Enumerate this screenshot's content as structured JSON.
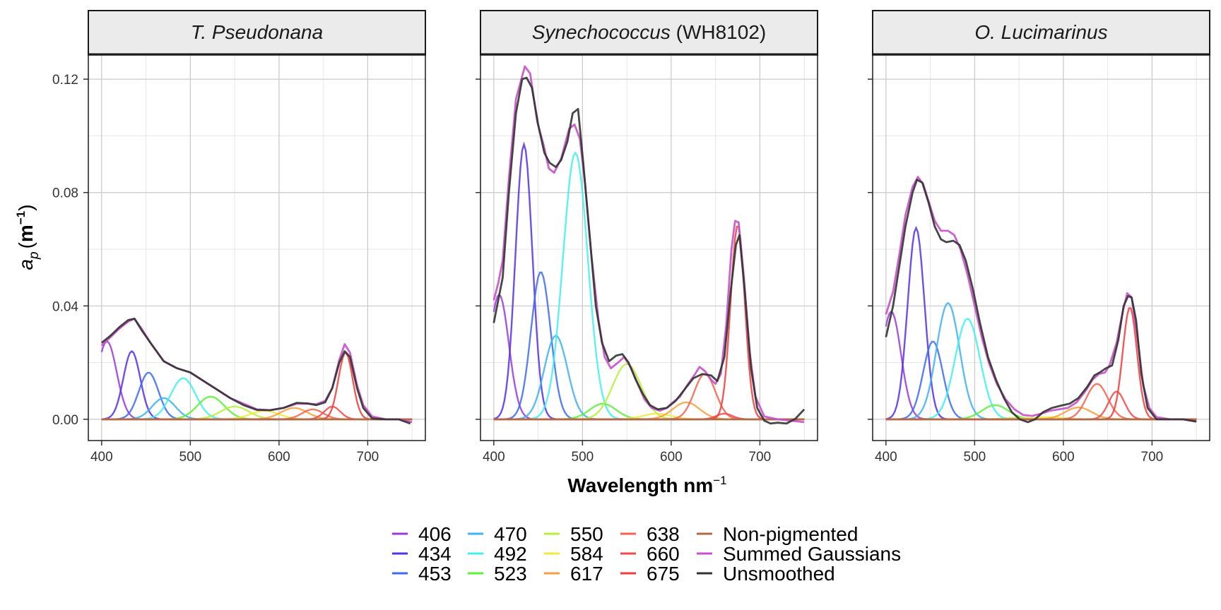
{
  "chart_data": {
    "type": "line",
    "xlabel": "Wavelength nm",
    "xlabel_sup": "−1",
    "ylabel": "a",
    "ylabel_sub": "p",
    "ylabel_unit": "m",
    "ylabel_unit_sup": "−1",
    "xlim": [
      385,
      765
    ],
    "ylim": [
      -0.0075,
      0.1285
    ],
    "x_ticks": [
      400,
      500,
      600,
      700
    ],
    "y_ticks": [
      0.0,
      0.04,
      0.08,
      0.12
    ],
    "y_tick_labels": [
      "0.00",
      "0.04",
      "0.08",
      "0.12"
    ],
    "grid": true,
    "legend_position": "bottom",
    "legend": [
      {
        "label": "406",
        "color": "#9b3ad6"
      },
      {
        "label": "434",
        "color": "#5330e8"
      },
      {
        "label": "453",
        "color": "#3d6af0"
      },
      {
        "label": "470",
        "color": "#3fb2f2"
      },
      {
        "label": "492",
        "color": "#3ff0ef"
      },
      {
        "label": "523",
        "color": "#5ef03a"
      },
      {
        "label": "550",
        "color": "#b6f03c"
      },
      {
        "label": "584",
        "color": "#f0ea3c"
      },
      {
        "label": "617",
        "color": "#f5a040"
      },
      {
        "label": "638",
        "color": "#f26450"
      },
      {
        "label": "660",
        "color": "#f04a4a"
      },
      {
        "label": "675",
        "color": "#f23c3c"
      },
      {
        "label": "Non-pigmented",
        "color": "#b06a48"
      },
      {
        "label": "Summed Gaussians",
        "color": "#c850c8"
      },
      {
        "label": "Unsmoothed",
        "color": "#333333"
      }
    ],
    "panels": [
      {
        "title": "T. Pseudonana",
        "title_suffix": "",
        "gaussian_peaks": [
          0.0275,
          0.024,
          0.0165,
          0.0075,
          0.0145,
          0.008,
          0.0045,
          0.003,
          0.004,
          0.0035,
          0.0045,
          0.0235
        ],
        "summed": [
          [
            400,
            0.026
          ],
          [
            410,
            0.029
          ],
          [
            420,
            0.032
          ],
          [
            430,
            0.0345
          ],
          [
            437,
            0.0355
          ],
          [
            445,
            0.032
          ],
          [
            455,
            0.027
          ],
          [
            470,
            0.0205
          ],
          [
            485,
            0.018
          ],
          [
            500,
            0.0165
          ],
          [
            515,
            0.0135
          ],
          [
            530,
            0.0105
          ],
          [
            545,
            0.0075
          ],
          [
            560,
            0.0055
          ],
          [
            575,
            0.0035
          ],
          [
            590,
            0.0032
          ],
          [
            605,
            0.004
          ],
          [
            620,
            0.0055
          ],
          [
            632,
            0.0055
          ],
          [
            642,
            0.0053
          ],
          [
            652,
            0.0065
          ],
          [
            660,
            0.011
          ],
          [
            668,
            0.021
          ],
          [
            674,
            0.0265
          ],
          [
            680,
            0.0235
          ],
          [
            688,
            0.012
          ],
          [
            695,
            0.005
          ],
          [
            705,
            0.001
          ],
          [
            720,
            0.0
          ],
          [
            735,
            0.0
          ],
          [
            750,
            -0.001
          ]
        ],
        "unsmoothed": [
          [
            400,
            0.027
          ],
          [
            410,
            0.0295
          ],
          [
            420,
            0.0325
          ],
          [
            430,
            0.035
          ],
          [
            437,
            0.0355
          ],
          [
            445,
            0.0315
          ],
          [
            455,
            0.027
          ],
          [
            470,
            0.0205
          ],
          [
            485,
            0.018
          ],
          [
            500,
            0.0165
          ],
          [
            515,
            0.0135
          ],
          [
            530,
            0.0105
          ],
          [
            545,
            0.0075
          ],
          [
            560,
            0.005
          ],
          [
            575,
            0.0033
          ],
          [
            590,
            0.0032
          ],
          [
            605,
            0.004
          ],
          [
            620,
            0.0058
          ],
          [
            632,
            0.0056
          ],
          [
            642,
            0.005
          ],
          [
            652,
            0.006
          ],
          [
            660,
            0.011
          ],
          [
            668,
            0.02
          ],
          [
            674,
            0.024
          ],
          [
            680,
            0.022
          ],
          [
            688,
            0.011
          ],
          [
            695,
            0.004
          ],
          [
            705,
            0.0003
          ],
          [
            720,
            0.0
          ],
          [
            735,
            0.0
          ],
          [
            748,
            -0.0015
          ]
        ]
      },
      {
        "title": "Synechococcus",
        "title_suffix": "(WH8102)",
        "gaussian_peaks": [
          0.044,
          0.097,
          0.052,
          0.0295,
          0.094,
          0.0055,
          0.0195,
          0.002,
          0.006,
          0.016,
          0.002,
          0.0685
        ],
        "summed": [
          [
            400,
            0.042
          ],
          [
            405,
            0.048
          ],
          [
            410,
            0.056
          ],
          [
            417,
            0.085
          ],
          [
            425,
            0.113
          ],
          [
            435,
            0.1245
          ],
          [
            441,
            0.122
          ],
          [
            449,
            0.105
          ],
          [
            456,
            0.097
          ],
          [
            462,
            0.0885
          ],
          [
            468,
            0.087
          ],
          [
            476,
            0.092
          ],
          [
            485,
            0.1025
          ],
          [
            491,
            0.104
          ],
          [
            497,
            0.099
          ],
          [
            503,
            0.083
          ],
          [
            510,
            0.058
          ],
          [
            518,
            0.035
          ],
          [
            525,
            0.022
          ],
          [
            532,
            0.018
          ],
          [
            540,
            0.02
          ],
          [
            547,
            0.022
          ],
          [
            555,
            0.018
          ],
          [
            563,
            0.012
          ],
          [
            570,
            0.007
          ],
          [
            578,
            0.004
          ],
          [
            587,
            0.003
          ],
          [
            595,
            0.004
          ],
          [
            602,
            0.006
          ],
          [
            610,
            0.008
          ],
          [
            618,
            0.012
          ],
          [
            627,
            0.016
          ],
          [
            632,
            0.0185
          ],
          [
            638,
            0.017
          ],
          [
            645,
            0.014
          ],
          [
            650,
            0.0125
          ],
          [
            656,
            0.016
          ],
          [
            662,
            0.033
          ],
          [
            668,
            0.06
          ],
          [
            672,
            0.07
          ],
          [
            676,
            0.0695
          ],
          [
            682,
            0.05
          ],
          [
            688,
            0.025
          ],
          [
            695,
            0.008
          ],
          [
            705,
            0.001
          ],
          [
            720,
            0.0
          ],
          [
            735,
            -0.0005
          ],
          [
            750,
            -0.001
          ]
        ],
        "unsmoothed": [
          [
            400,
            0.034
          ],
          [
            405,
            0.042
          ],
          [
            410,
            0.05
          ],
          [
            417,
            0.08
          ],
          [
            425,
            0.108
          ],
          [
            432,
            0.12
          ],
          [
            437,
            0.1205
          ],
          [
            443,
            0.117
          ],
          [
            450,
            0.104
          ],
          [
            457,
            0.094
          ],
          [
            463,
            0.0905
          ],
          [
            470,
            0.089
          ],
          [
            476,
            0.0915
          ],
          [
            483,
            0.098
          ],
          [
            489,
            0.108
          ],
          [
            495,
            0.1095
          ],
          [
            501,
            0.09
          ],
          [
            508,
            0.065
          ],
          [
            515,
            0.04
          ],
          [
            522,
            0.027
          ],
          [
            530,
            0.0205
          ],
          [
            538,
            0.0225
          ],
          [
            545,
            0.023
          ],
          [
            552,
            0.02
          ],
          [
            560,
            0.014
          ],
          [
            568,
            0.009
          ],
          [
            576,
            0.005
          ],
          [
            585,
            0.0035
          ],
          [
            595,
            0.004
          ],
          [
            605,
            0.0065
          ],
          [
            615,
            0.0105
          ],
          [
            625,
            0.0145
          ],
          [
            635,
            0.016
          ],
          [
            645,
            0.0155
          ],
          [
            652,
            0.0135
          ],
          [
            660,
            0.022
          ],
          [
            667,
            0.045
          ],
          [
            673,
            0.0615
          ],
          [
            677,
            0.065
          ],
          [
            683,
            0.045
          ],
          [
            690,
            0.018
          ],
          [
            697,
            0.004
          ],
          [
            705,
            -0.0005
          ],
          [
            712,
            -0.0015
          ],
          [
            720,
            -0.0012
          ],
          [
            730,
            -0.0015
          ],
          [
            740,
            0.0002
          ],
          [
            750,
            0.0035
          ]
        ]
      },
      {
        "title": "O. Lucimarinus",
        "title_suffix": "",
        "gaussian_peaks": [
          0.038,
          0.0675,
          0.0275,
          0.041,
          0.0355,
          0.005,
          0.0005,
          0.0008,
          0.0042,
          0.0125,
          0.0098,
          0.0395
        ],
        "summed": [
          [
            400,
            0.037
          ],
          [
            408,
            0.045
          ],
          [
            415,
            0.058
          ],
          [
            422,
            0.072
          ],
          [
            430,
            0.082
          ],
          [
            436,
            0.0855
          ],
          [
            442,
            0.083
          ],
          [
            448,
            0.077
          ],
          [
            455,
            0.07
          ],
          [
            462,
            0.0665
          ],
          [
            470,
            0.0665
          ],
          [
            477,
            0.065
          ],
          [
            484,
            0.06
          ],
          [
            492,
            0.051
          ],
          [
            500,
            0.04
          ],
          [
            508,
            0.029
          ],
          [
            516,
            0.02
          ],
          [
            525,
            0.0125
          ],
          [
            535,
            0.007
          ],
          [
            545,
            0.0035
          ],
          [
            555,
            0.0015
          ],
          [
            565,
            0.0012
          ],
          [
            575,
            0.002
          ],
          [
            585,
            0.003
          ],
          [
            595,
            0.0035
          ],
          [
            605,
            0.004
          ],
          [
            615,
            0.006
          ],
          [
            625,
            0.01
          ],
          [
            633,
            0.014
          ],
          [
            640,
            0.016
          ],
          [
            647,
            0.0165
          ],
          [
            652,
            0.019
          ],
          [
            660,
            0.027
          ],
          [
            667,
            0.038
          ],
          [
            672,
            0.0445
          ],
          [
            677,
            0.043
          ],
          [
            683,
            0.03
          ],
          [
            690,
            0.012
          ],
          [
            697,
            0.004
          ],
          [
            705,
            0.0008
          ],
          [
            720,
            0.0
          ],
          [
            735,
            0.0
          ],
          [
            750,
            -0.0008
          ]
        ],
        "unsmoothed": [
          [
            400,
            0.029
          ],
          [
            408,
            0.04
          ],
          [
            415,
            0.054
          ],
          [
            422,
            0.068
          ],
          [
            430,
            0.08
          ],
          [
            435,
            0.0845
          ],
          [
            441,
            0.0835
          ],
          [
            448,
            0.0765
          ],
          [
            455,
            0.068
          ],
          [
            462,
            0.0635
          ],
          [
            468,
            0.0625
          ],
          [
            476,
            0.063
          ],
          [
            483,
            0.0615
          ],
          [
            490,
            0.056
          ],
          [
            498,
            0.046
          ],
          [
            506,
            0.034
          ],
          [
            515,
            0.022
          ],
          [
            524,
            0.014
          ],
          [
            533,
            0.0075
          ],
          [
            542,
            0.0025
          ],
          [
            551,
            0.0
          ],
          [
            560,
            -0.001
          ],
          [
            568,
            0.0
          ],
          [
            577,
            0.0025
          ],
          [
            587,
            0.004
          ],
          [
            597,
            0.0048
          ],
          [
            607,
            0.0055
          ],
          [
            617,
            0.0075
          ],
          [
            627,
            0.0115
          ],
          [
            635,
            0.0155
          ],
          [
            641,
            0.0165
          ],
          [
            648,
            0.018
          ],
          [
            655,
            0.019
          ],
          [
            662,
            0.028
          ],
          [
            668,
            0.04
          ],
          [
            673,
            0.0435
          ],
          [
            677,
            0.043
          ],
          [
            682,
            0.035
          ],
          [
            688,
            0.016
          ],
          [
            695,
            0.004
          ],
          [
            705,
            0.0
          ],
          [
            720,
            0.0
          ],
          [
            735,
            0.0
          ],
          [
            750,
            -0.0008
          ]
        ]
      }
    ]
  }
}
